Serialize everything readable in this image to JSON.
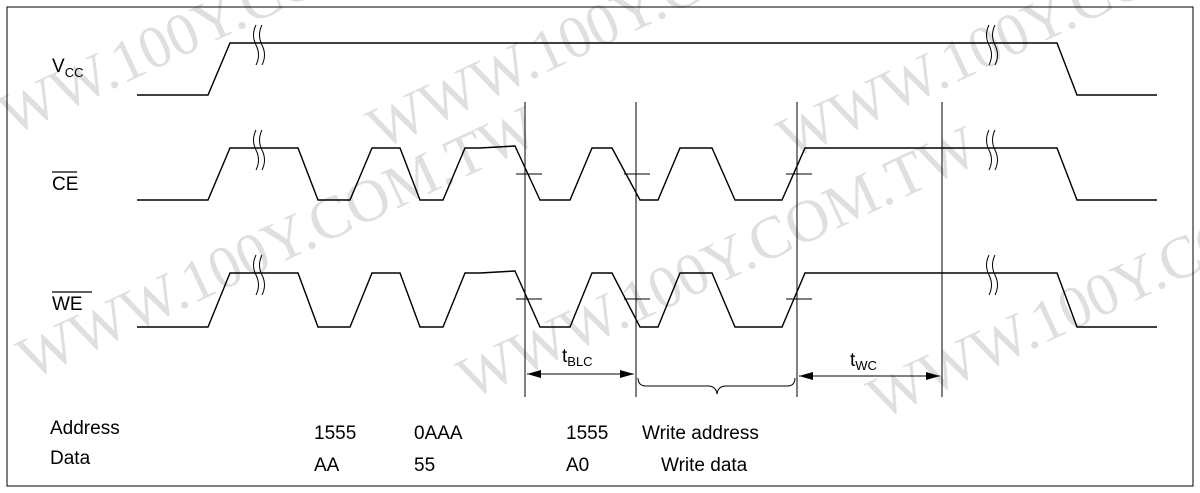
{
  "watermark": "WWW.100Y.COM.TW",
  "signals": {
    "vcc": {
      "main": "V",
      "sub": "CC"
    },
    "ce": "CE",
    "we": "WE"
  },
  "timing": {
    "tblc": {
      "main": "t",
      "sub": "BLC"
    },
    "twc": {
      "main": "t",
      "sub": "WC"
    }
  },
  "rows": {
    "address": {
      "label": "Address",
      "values": [
        "1555",
        "0AAA",
        "1555",
        "Write address"
      ]
    },
    "data": {
      "label": "Data",
      "values": [
        "AA",
        "55",
        "A0",
        "Write data"
      ]
    }
  }
}
